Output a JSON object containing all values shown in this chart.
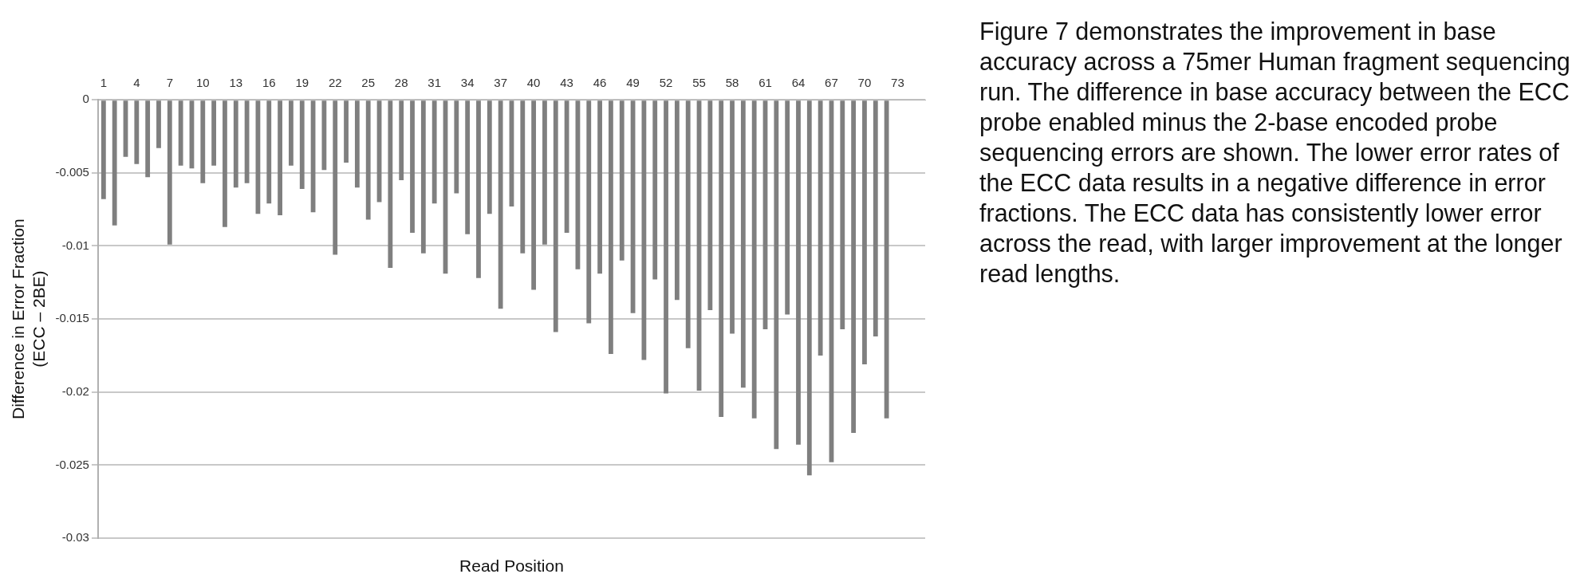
{
  "chart_data": {
    "type": "bar",
    "xlabel": "Read Position",
    "ylabel": "Difference in Error Fraction\n(ECC – 2BE)",
    "categories": [
      "1",
      null,
      null,
      "4",
      null,
      null,
      "7",
      null,
      null,
      "10",
      null,
      null,
      "13",
      null,
      null,
      "16",
      null,
      null,
      "19",
      null,
      null,
      "22",
      null,
      null,
      "25",
      null,
      null,
      "28",
      null,
      null,
      "31",
      null,
      null,
      "34",
      null,
      null,
      "37",
      null,
      null,
      "40",
      null,
      null,
      "43",
      null,
      null,
      "46",
      null,
      null,
      "49",
      null,
      null,
      "52",
      null,
      null,
      "55",
      null,
      null,
      "58",
      null,
      null,
      "61",
      null,
      null,
      "64",
      null,
      null,
      "67",
      null,
      null,
      "70",
      null,
      null,
      "73",
      null,
      null
    ],
    "values": [
      -0.0068,
      -0.0086,
      -0.0039,
      -0.0044,
      -0.0053,
      -0.0033,
      -0.0099,
      -0.0045,
      -0.0047,
      -0.0057,
      -0.0045,
      -0.0087,
      -0.006,
      -0.0057,
      -0.0078,
      -0.0071,
      -0.0079,
      -0.0045,
      -0.0061,
      -0.0077,
      -0.0048,
      -0.0106,
      -0.0043,
      -0.006,
      -0.0082,
      -0.007,
      -0.0115,
      -0.0055,
      -0.0091,
      -0.0105,
      -0.0071,
      -0.0119,
      -0.0064,
      -0.0092,
      -0.0122,
      -0.0078,
      -0.0143,
      -0.0073,
      -0.0105,
      -0.013,
      -0.0099,
      -0.0159,
      -0.0091,
      -0.0116,
      -0.0153,
      -0.0119,
      -0.0174,
      -0.011,
      -0.0146,
      -0.0178,
      -0.0123,
      -0.0201,
      -0.0137,
      -0.017,
      -0.0199,
      -0.0144,
      -0.0217,
      -0.016,
      -0.0197,
      -0.0218,
      -0.0157,
      -0.0239,
      -0.0147,
      -0.0236,
      -0.0257,
      -0.0175,
      -0.0248,
      -0.0157,
      -0.0228,
      -0.0181,
      -0.0162,
      -0.0218,
      null,
      null,
      null
    ],
    "color": "#7f7f7f",
    "ylim": [
      -0.03,
      0
    ],
    "yticks": [
      0,
      -0.005,
      -0.01,
      -0.015,
      -0.02,
      -0.025,
      -0.03
    ],
    "grid": "y",
    "annotations": [
      "Figure 7 demonstrates the improvement in base accuracy across a 75mer Human fragment sequencing run. The difference in base accuracy between the ECC probe enabled minus the 2-base encoded probe sequencing errors are shown. The lower error rates of the ECC data results in a negative difference in error fractions. The ECC data has consistently lower error across the read, with larger improvement at the longer read lengths."
    ]
  }
}
